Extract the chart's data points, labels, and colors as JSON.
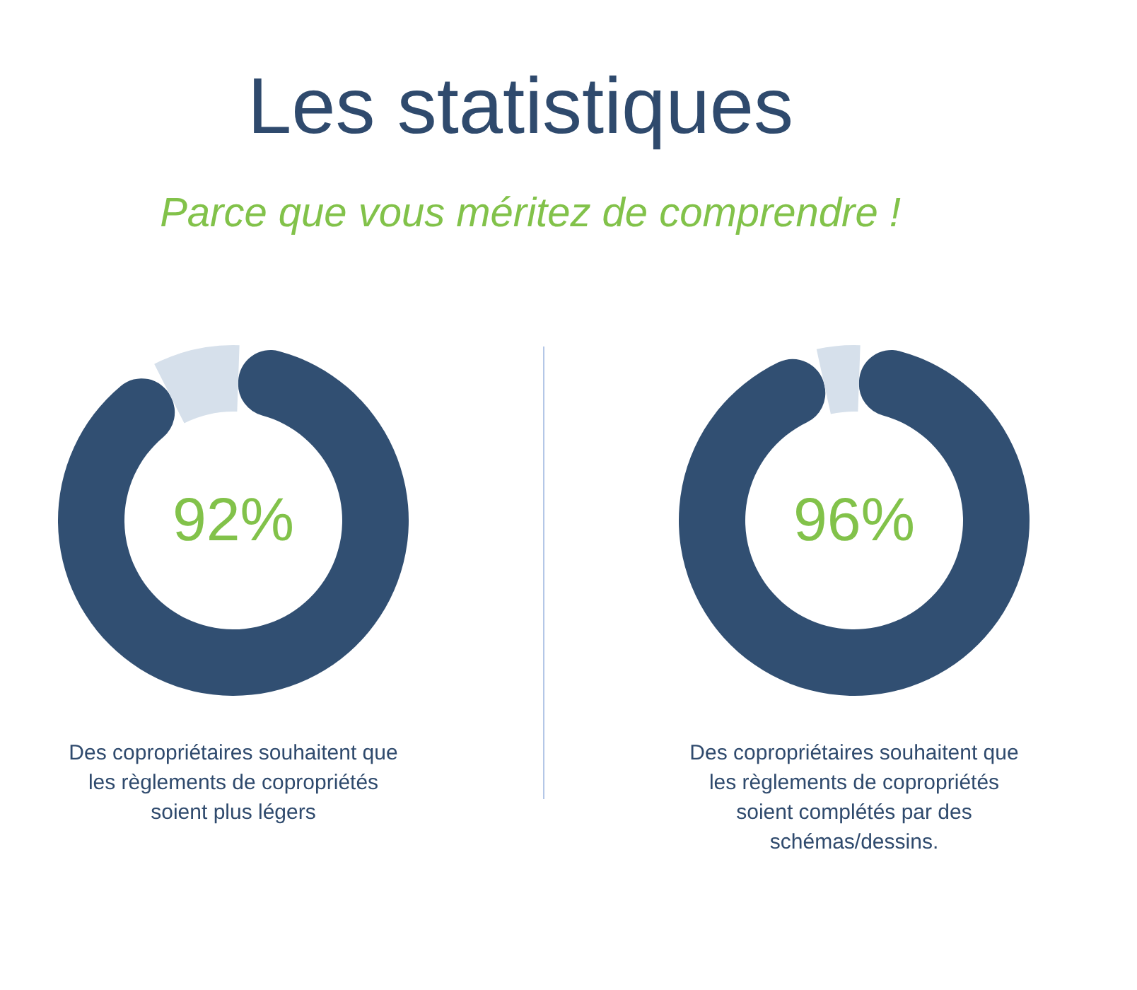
{
  "chart_data": [
    {
      "type": "donut",
      "title": "Les statistiques",
      "subtitle": "Parce que vous méritez de comprendre !",
      "categories": [
        null,
        null
      ],
      "values": [
        92,
        8
      ],
      "colors": [
        "#314f72",
        "#d6e0eb"
      ],
      "value_labels": [
        "92%",
        null
      ],
      "annotations": [
        "Des copropriétaires souhaitent que les règlements de copropriétés soient plus légers"
      ]
    },
    {
      "type": "donut",
      "categories": [
        null,
        null
      ],
      "values": [
        96,
        4
      ],
      "colors": [
        "#314f72",
        "#d6e0eb"
      ],
      "value_labels": [
        "96%",
        null
      ],
      "annotations": [
        "Des copropriétaires souhaitent que les règlements de copropriétés soient complétés par des schémas/dessins."
      ]
    }
  ]
}
